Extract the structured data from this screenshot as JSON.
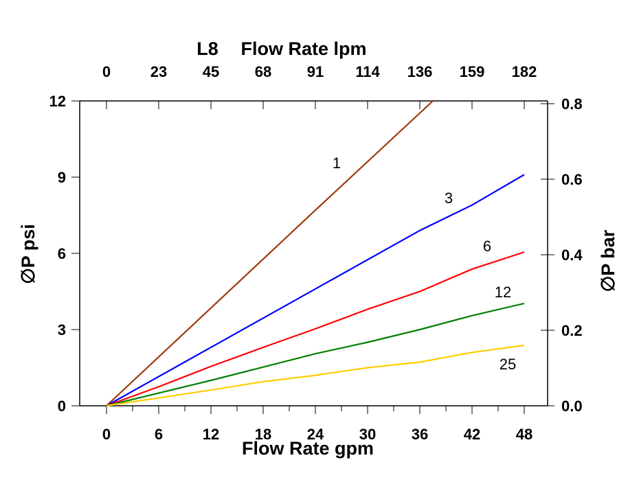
{
  "chart_data": {
    "type": "line",
    "title": "L8",
    "xlabel": "Flow Rate gpm",
    "x2label": "Flow Rate lpm",
    "ylabel": "∅P psi",
    "y2label": "∅P bar",
    "xlim": [
      0,
      48
    ],
    "ylim": [
      0,
      12
    ],
    "y2lim": [
      0,
      0.8
    ],
    "xticks": [
      "0",
      "6",
      "12",
      "18",
      "24",
      "30",
      "36",
      "42",
      "48"
    ],
    "x2ticks": [
      "0",
      "23",
      "45",
      "68",
      "91",
      "114",
      "136",
      "159",
      "182"
    ],
    "yticks": [
      "0",
      "3",
      "6",
      "9",
      "12"
    ],
    "y2ticks": [
      "0.0",
      "0.2",
      "0.4",
      "0.6",
      "0.8"
    ],
    "grid": false,
    "series": [
      {
        "name": "1",
        "color": "#a0380a",
        "x": [
          0,
          12,
          24,
          37.5
        ],
        "y": [
          0,
          3.85,
          7.7,
          12
        ]
      },
      {
        "name": "3",
        "color": "#0000ff",
        "x": [
          0,
          12,
          24,
          36,
          42,
          48
        ],
        "y": [
          0,
          2.3,
          4.6,
          6.9,
          7.9,
          9.1
        ]
      },
      {
        "name": "6",
        "color": "#ff0000",
        "x": [
          0,
          6,
          12,
          18,
          24,
          30,
          36,
          42,
          48
        ],
        "y": [
          0,
          0.75,
          1.55,
          2.3,
          3.03,
          3.8,
          4.5,
          5.38,
          6.05
        ]
      },
      {
        "name": "12",
        "color": "#008000",
        "x": [
          0,
          12,
          24,
          30,
          36,
          42,
          48
        ],
        "y": [
          0,
          1.0,
          2.05,
          2.5,
          3.0,
          3.55,
          4.03
        ]
      },
      {
        "name": "25",
        "color": "#ffcc00",
        "x": [
          0,
          12,
          18,
          24,
          30,
          36,
          42,
          48
        ],
        "y": [
          0,
          0.62,
          0.95,
          1.2,
          1.5,
          1.72,
          2.1,
          2.38
        ]
      }
    ]
  }
}
